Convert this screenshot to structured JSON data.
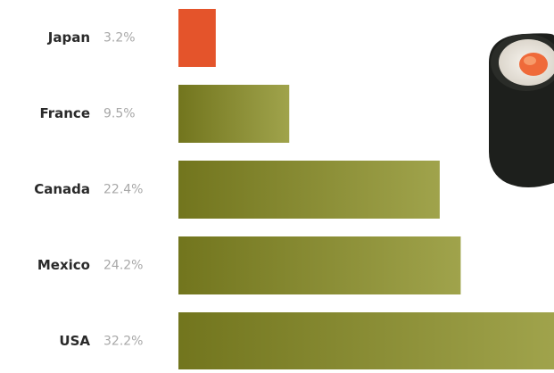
{
  "chart_data": {
    "type": "bar",
    "orientation": "horizontal",
    "categories": [
      "Japan",
      "France",
      "Canada",
      "Mexico",
      "USA"
    ],
    "values": [
      3.2,
      9.5,
      22.4,
      24.2,
      32.2
    ],
    "value_labels": [
      "3.2%",
      "9.5%",
      "22.4%",
      "24.2%",
      "32.2%"
    ],
    "colors": [
      "#e4542b",
      "#8b8f24",
      "#8b8f24",
      "#8b8f24",
      "#8b8f24"
    ]
  }
}
